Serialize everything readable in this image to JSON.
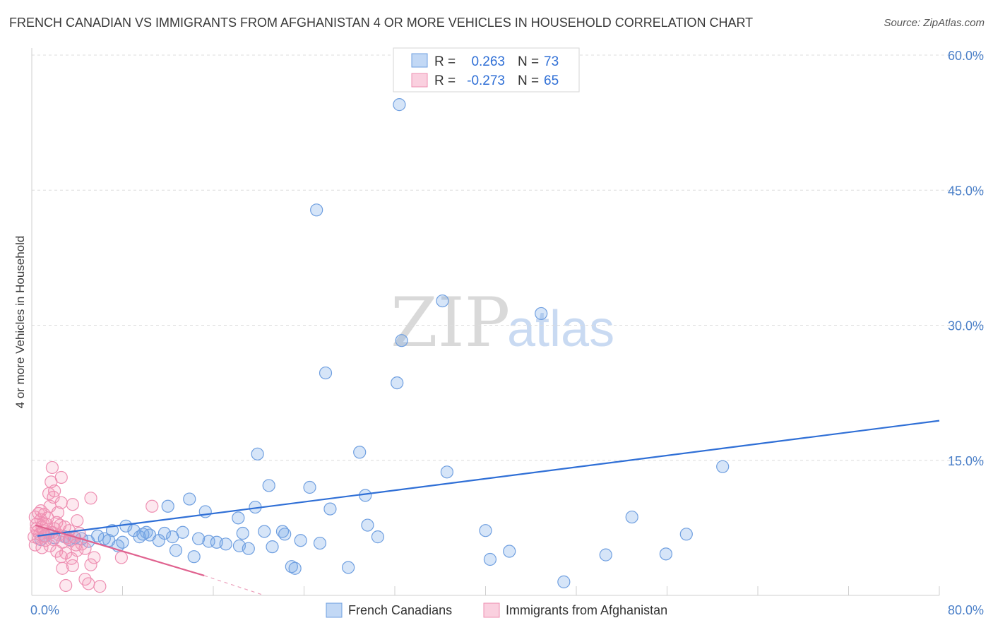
{
  "title": "FRENCH CANADIAN VS IMMIGRANTS FROM AFGHANISTAN 4 OR MORE VEHICLES IN HOUSEHOLD CORRELATION CHART",
  "source": "Source: ZipAtlas.com",
  "watermark": {
    "zip": "ZIP",
    "atlas": "atlas"
  },
  "legend_top": {
    "rows": [
      {
        "r_label": "R =",
        "r_value": "0.263",
        "n_label": "N =",
        "n_value": "73"
      },
      {
        "r_label": "R =",
        "r_value": "-0.273",
        "n_label": "N =",
        "n_value": "65"
      }
    ]
  },
  "colors": {
    "blue": "#5b95e6",
    "blue_line": "#2f6fd6",
    "pink": "#f29ab9",
    "pink_line": "#e0628f",
    "tick_text": "#4a7fc8"
  },
  "chart_data": {
    "type": "scatter",
    "title": "FRENCH CANADIAN VS IMMIGRANTS FROM AFGHANISTAN 4 OR MORE VEHICLES IN HOUSEHOLD CORRELATION CHART",
    "xlabel": "",
    "ylabel": "4 or more Vehicles in Household",
    "xlim": [
      0,
      80
    ],
    "ylim": [
      0,
      60
    ],
    "x_tick_labels": [
      "0.0%",
      "80.0%"
    ],
    "y_ticks": [
      15,
      30,
      45,
      60
    ],
    "y_tick_labels": [
      "15.0%",
      "30.0%",
      "45.0%",
      "60.0%"
    ],
    "grid": true,
    "legend_position": "bottom",
    "series": [
      {
        "name": "French Canadians",
        "color": "#5b95e6",
        "trend": {
          "x": [
            0.5,
            80
          ],
          "y": [
            6.6,
            19.4
          ]
        },
        "points": [
          [
            32.4,
            54.5
          ],
          [
            25.1,
            42.8
          ],
          [
            36.2,
            32.7
          ],
          [
            44.9,
            31.3
          ],
          [
            32.6,
            28.3
          ],
          [
            25.9,
            24.7
          ],
          [
            32.2,
            23.6
          ],
          [
            28.9,
            15.9
          ],
          [
            19.9,
            15.7
          ],
          [
            36.6,
            13.7
          ],
          [
            60.9,
            14.3
          ],
          [
            20.9,
            12.2
          ],
          [
            24.5,
            12.0
          ],
          [
            13.9,
            10.7
          ],
          [
            29.4,
            11.1
          ],
          [
            12.0,
            9.9
          ],
          [
            19.7,
            9.8
          ],
          [
            26.3,
            9.6
          ],
          [
            15.3,
            9.3
          ],
          [
            18.2,
            8.6
          ],
          [
            52.9,
            8.7
          ],
          [
            29.6,
            7.8
          ],
          [
            40.0,
            7.2
          ],
          [
            8.3,
            7.7
          ],
          [
            7.1,
            7.2
          ],
          [
            9.0,
            7.2
          ],
          [
            10.1,
            7.0
          ],
          [
            11.7,
            6.9
          ],
          [
            13.3,
            7.0
          ],
          [
            18.6,
            6.9
          ],
          [
            20.5,
            7.1
          ],
          [
            22.1,
            7.1
          ],
          [
            22.3,
            6.8
          ],
          [
            57.7,
            6.8
          ],
          [
            1.5,
            6.9
          ],
          [
            2.9,
            6.5
          ],
          [
            4.4,
            6.3
          ],
          [
            5.8,
            6.6
          ],
          [
            6.4,
            6.3
          ],
          [
            8.0,
            5.9
          ],
          [
            9.5,
            6.5
          ],
          [
            10.4,
            6.7
          ],
          [
            11.2,
            6.1
          ],
          [
            12.4,
            6.5
          ],
          [
            14.7,
            6.3
          ],
          [
            15.6,
            6.0
          ],
          [
            16.3,
            5.9
          ],
          [
            17.1,
            5.7
          ],
          [
            18.3,
            5.5
          ],
          [
            19.1,
            5.2
          ],
          [
            21.2,
            5.4
          ],
          [
            23.7,
            6.1
          ],
          [
            25.4,
            5.8
          ],
          [
            30.5,
            6.5
          ],
          [
            0.8,
            6.2
          ],
          [
            1.2,
            6.6
          ],
          [
            2.0,
            6.4
          ],
          [
            3.3,
            6.2
          ],
          [
            5.0,
            6.0
          ],
          [
            7.6,
            5.5
          ],
          [
            12.7,
            5.0
          ],
          [
            14.3,
            4.3
          ],
          [
            42.1,
            4.9
          ],
          [
            50.6,
            4.5
          ],
          [
            55.9,
            4.6
          ],
          [
            40.4,
            4.0
          ],
          [
            22.9,
            3.2
          ],
          [
            23.2,
            3.0
          ],
          [
            27.9,
            3.1
          ],
          [
            46.9,
            1.5
          ],
          [
            3.8,
            6.4
          ],
          [
            6.8,
            6.1
          ],
          [
            9.8,
            6.8
          ]
        ]
      },
      {
        "name": "Immigrants from Afghanistan",
        "color": "#f29ab9",
        "trend": {
          "x": [
            0.3,
            15.2
          ],
          "y": [
            7.8,
            2.2
          ],
          "dashed_to": [
            20.5,
            0.0
          ]
        },
        "points": [
          [
            1.8,
            14.2
          ],
          [
            2.6,
            13.1
          ],
          [
            1.7,
            12.6
          ],
          [
            1.5,
            11.3
          ],
          [
            5.2,
            10.8
          ],
          [
            1.9,
            10.9
          ],
          [
            2.6,
            10.3
          ],
          [
            3.6,
            10.1
          ],
          [
            1.6,
            9.9
          ],
          [
            10.6,
            9.9
          ],
          [
            0.6,
            9.1
          ],
          [
            1.1,
            9.0
          ],
          [
            2.3,
            9.2
          ],
          [
            0.3,
            8.7
          ],
          [
            0.8,
            8.4
          ],
          [
            1.4,
            8.6
          ],
          [
            2.2,
            8.1
          ],
          [
            4.0,
            8.3
          ],
          [
            0.4,
            7.9
          ],
          [
            0.9,
            7.6
          ],
          [
            1.3,
            7.9
          ],
          [
            2.0,
            7.4
          ],
          [
            2.9,
            7.6
          ],
          [
            3.3,
            7.2
          ],
          [
            0.5,
            7.1
          ],
          [
            0.7,
            6.8
          ],
          [
            1.0,
            7.2
          ],
          [
            1.5,
            6.9
          ],
          [
            1.8,
            7.0
          ],
          [
            2.4,
            6.7
          ],
          [
            3.1,
            6.4
          ],
          [
            3.7,
            6.5
          ],
          [
            0.2,
            6.5
          ],
          [
            0.6,
            6.3
          ],
          [
            1.2,
            6.1
          ],
          [
            2.7,
            5.9
          ],
          [
            3.4,
            6.1
          ],
          [
            4.4,
            5.7
          ],
          [
            0.3,
            5.6
          ],
          [
            0.9,
            5.3
          ],
          [
            1.6,
            5.5
          ],
          [
            2.2,
            4.9
          ],
          [
            3.0,
            4.7
          ],
          [
            4.7,
            5.2
          ],
          [
            2.6,
            4.3
          ],
          [
            3.5,
            4.1
          ],
          [
            5.5,
            4.2
          ],
          [
            7.9,
            4.2
          ],
          [
            2.7,
            3.0
          ],
          [
            3.6,
            3.3
          ],
          [
            5.2,
            3.4
          ],
          [
            4.7,
            1.8
          ],
          [
            5.0,
            1.3
          ],
          [
            3.0,
            1.1
          ],
          [
            6.0,
            1.0
          ],
          [
            1.0,
            8.0
          ],
          [
            1.9,
            6.2
          ],
          [
            0.4,
            7.4
          ],
          [
            2.5,
            7.8
          ],
          [
            1.1,
            6.6
          ],
          [
            4.2,
            6.9
          ],
          [
            3.9,
            5.6
          ],
          [
            0.8,
            9.4
          ],
          [
            2.0,
            11.6
          ],
          [
            4.0,
            5.0
          ]
        ]
      }
    ]
  }
}
